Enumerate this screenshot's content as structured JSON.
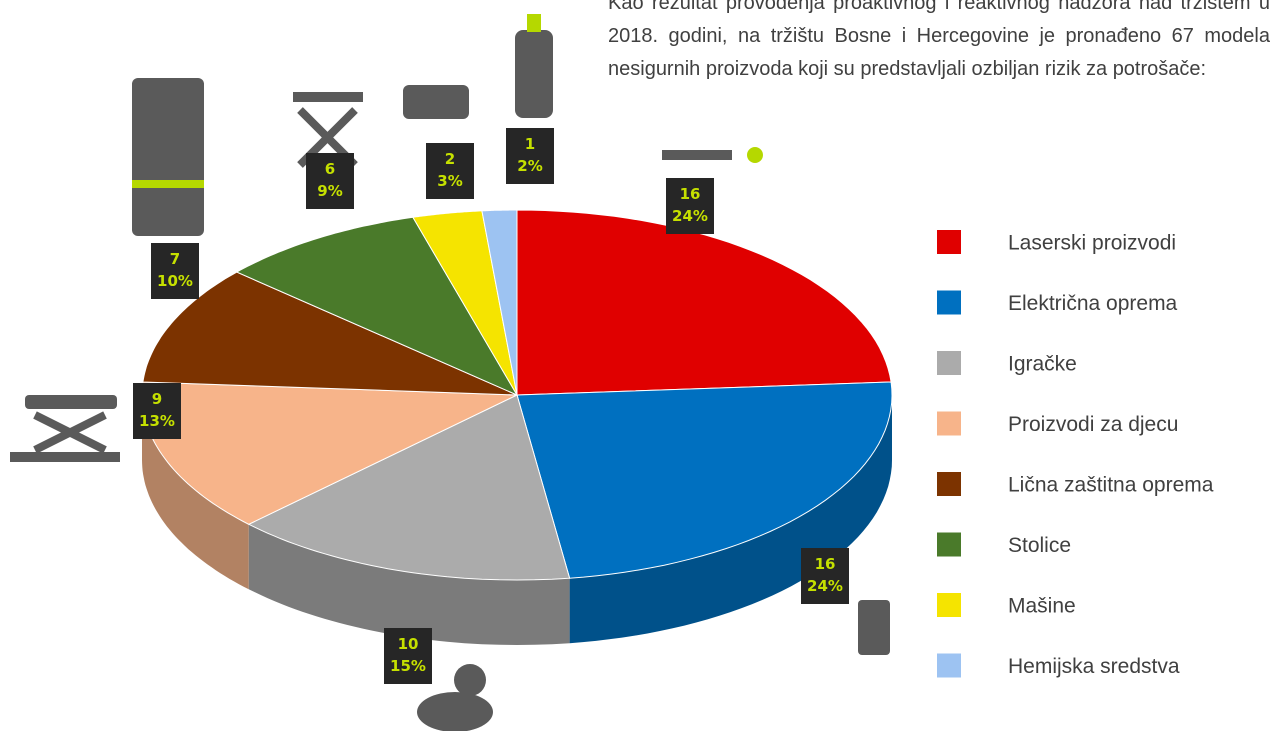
{
  "text": "Kao rezultat provođenja proaktivnog i reaktivnog nadzora nad tržištem u 2018. godini, na tržištu Bosne i Hercegovine je pronađeno 67 modela nesigurnih proizvoda koji su predstavljali ozbiljan rizik za potrošače:",
  "chart_data": {
    "type": "pie",
    "categories": [
      "Laserski proizvodi",
      "Električna oprema",
      "Igračke",
      "Proizvodi za djecu",
      "Lična zaštitna oprema",
      "Stolice",
      "Mašine",
      "Hemijska sredstva"
    ],
    "values": [
      16,
      16,
      10,
      9,
      7,
      6,
      2,
      1
    ],
    "percent_labels": [
      "24%",
      "24%",
      "15%",
      "13%",
      "10%",
      "9%",
      "3%",
      "2%"
    ],
    "colors": [
      "#e00000",
      "#0070c0",
      "#ababab",
      "#f7b48a",
      "#7c3300",
      "#4a7a2a",
      "#f5e400",
      "#9dc3f2"
    ],
    "legend": "right"
  }
}
